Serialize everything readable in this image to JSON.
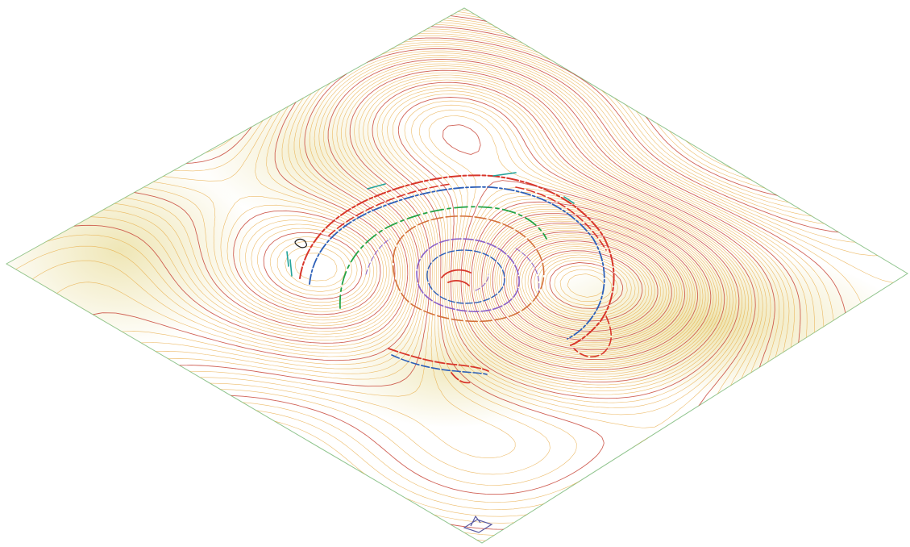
{
  "view": {
    "kind": "isometric terrain surface with contour lines",
    "background_color": "#ffffff"
  },
  "terrain": {
    "surface_color": "#a6d7a4",
    "surface_warm_color": "#e2d27a",
    "edge_color": "#8fc48d"
  },
  "contours": {
    "minor_color": "#e7a53a",
    "major_color": "#c8463a",
    "major_every": 5,
    "count": 84
  },
  "features": {
    "outer_ring_colors": [
      "#d8362b",
      "#2c5fb8"
    ],
    "inner_ring_colors": [
      "#8a5fc8",
      "#d4703a",
      "#23a346"
    ],
    "fragment_color": "#23a39a",
    "marker_color": "#1a1a1a"
  },
  "view_cube": {
    "icon": "view-cube-icon",
    "color": "#5a5aa0"
  }
}
